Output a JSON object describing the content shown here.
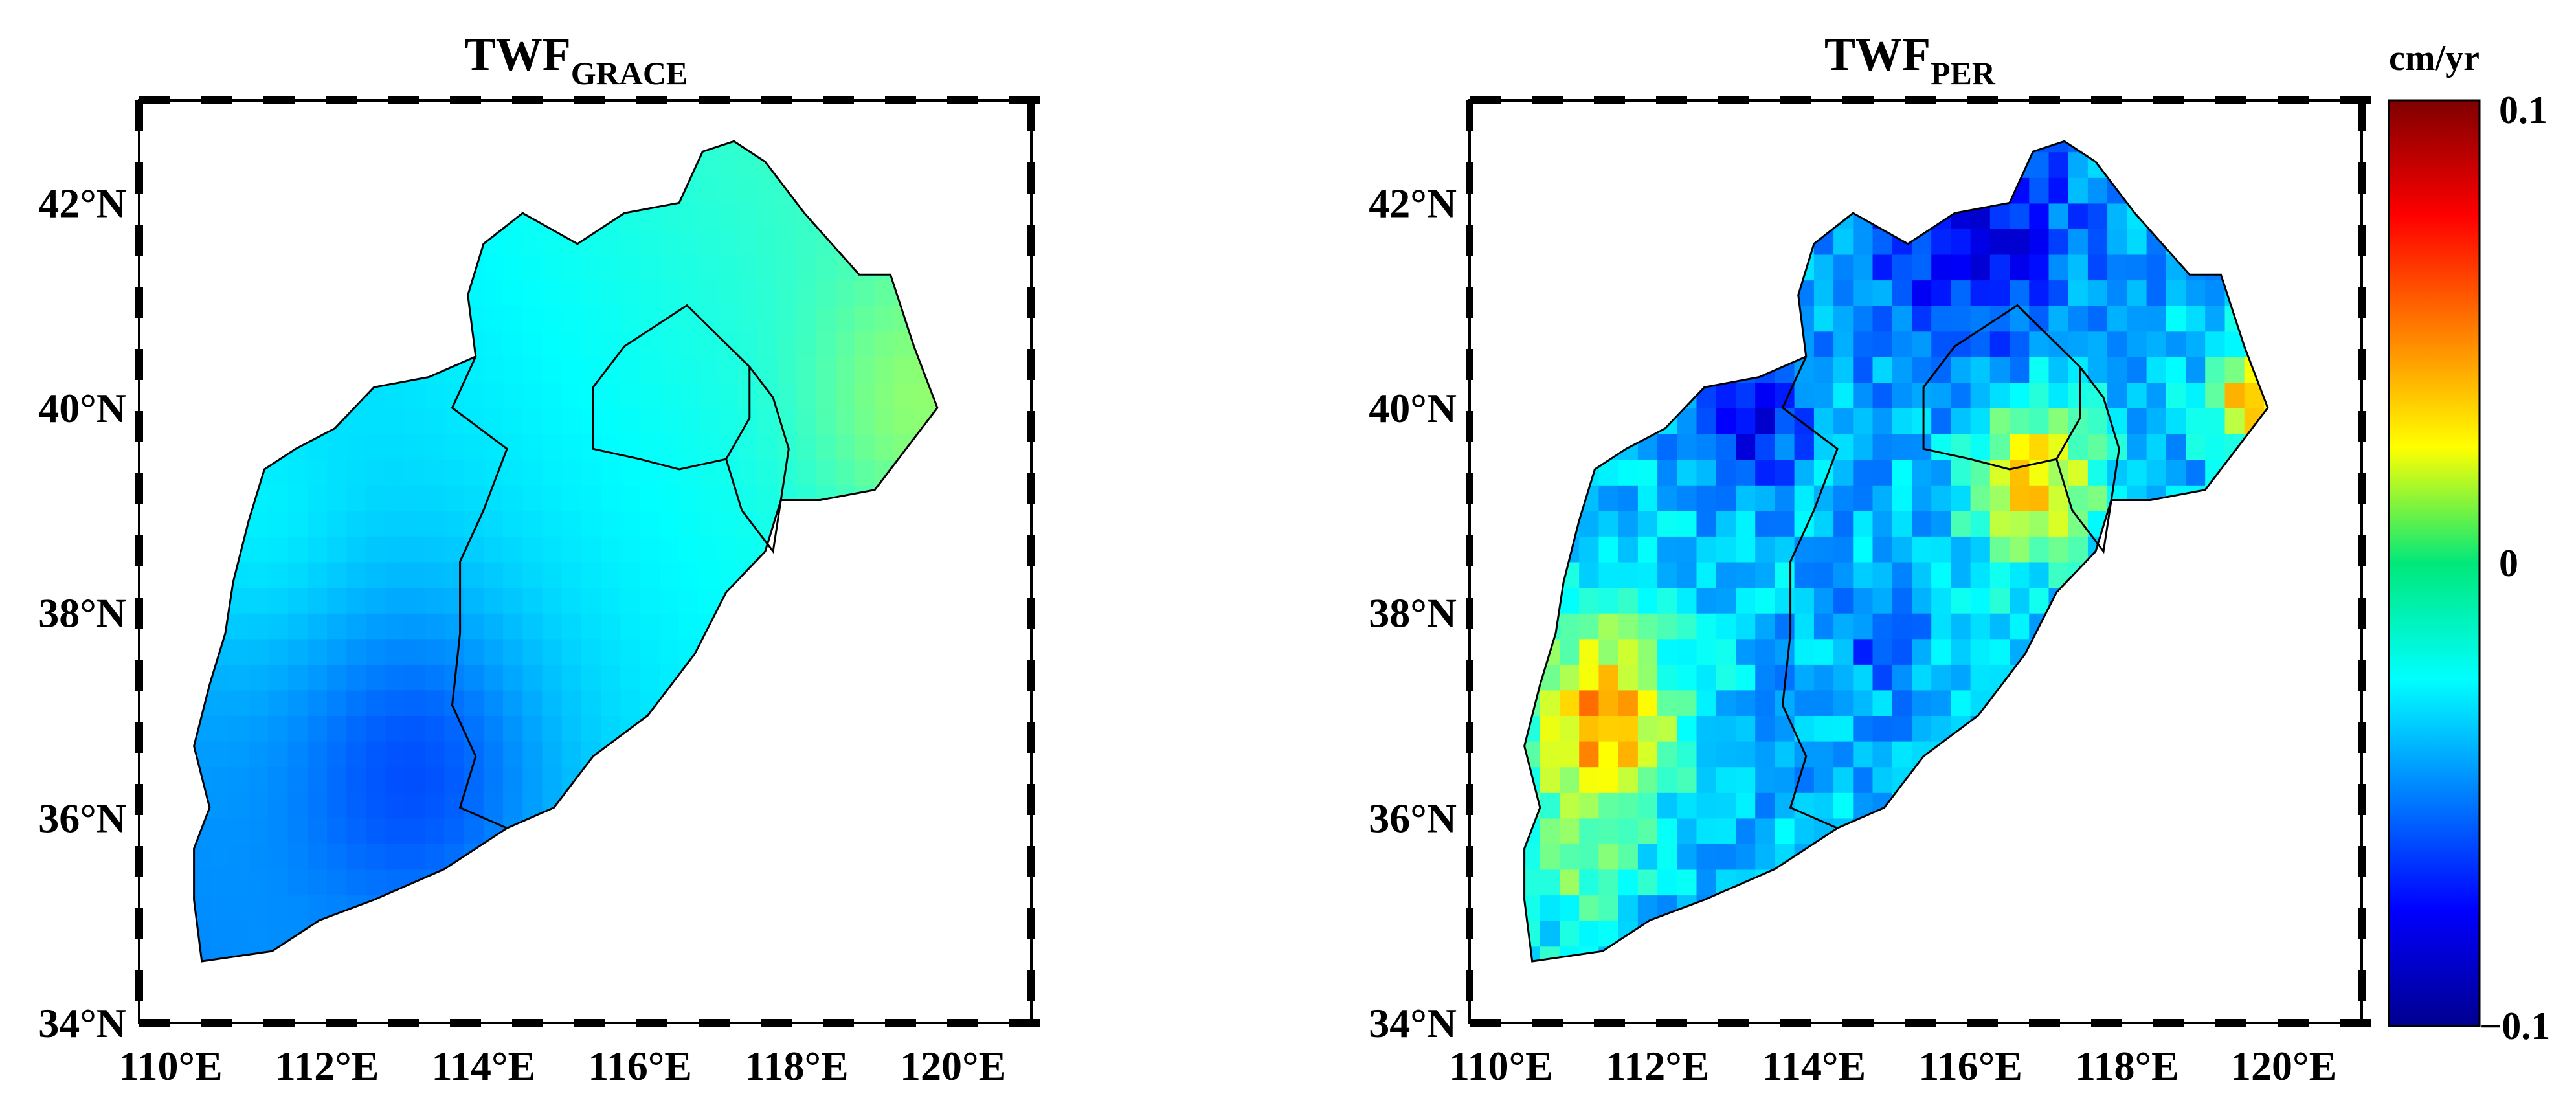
{
  "maps": [
    {
      "title_main": "TWF",
      "title_sub": "GRACE",
      "lon_ticks": [
        "110°E",
        "112°E",
        "114°E",
        "116°E",
        "118°E",
        "120°E"
      ],
      "lat_ticks": [
        "34°N",
        "36°N",
        "38°N",
        "40°N",
        "42°N"
      ],
      "field": "grace"
    },
    {
      "title_main": "TWF",
      "title_sub": "PER",
      "lon_ticks": [
        "110°E",
        "112°E",
        "114°E",
        "116°E",
        "118°E",
        "120°E"
      ],
      "lat_ticks": [
        "34°N",
        "36°N",
        "38°N",
        "40°N",
        "42°N"
      ],
      "field": "per"
    }
  ],
  "colorbar": {
    "unit": "cm/yr",
    "max_label": "0.1",
    "mid_label": "0",
    "min_label": "−0.1",
    "colormap": "jet",
    "range": [
      -0.1,
      0.1
    ]
  }
}
